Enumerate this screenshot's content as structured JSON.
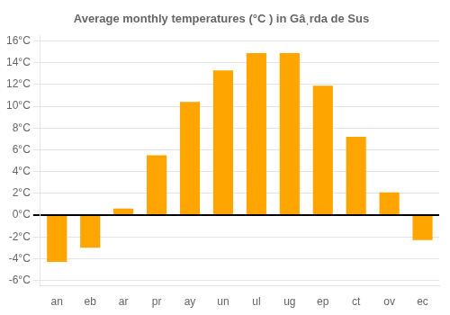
{
  "chart_data": {
    "type": "bar",
    "title": "Average monthly temperatures (°C ) in Gâˌrda de Sus",
    "categories": [
      "an",
      "eb",
      "ar",
      "pr",
      "ay",
      "un",
      "ul",
      "ug",
      "ep",
      "ct",
      "ov",
      "ec"
    ],
    "values": [
      -4.3,
      -3.0,
      0.6,
      5.5,
      10.4,
      13.3,
      14.9,
      14.9,
      11.9,
      7.2,
      2.1,
      -2.3
    ],
    "color": "#FFA500",
    "ylim": [
      -6.5,
      16.5
    ],
    "yticks": [
      {
        "value": -6,
        "label": "-6°C"
      },
      {
        "value": -4,
        "label": "-4°C"
      },
      {
        "value": -2,
        "label": "-2°C"
      },
      {
        "value": 0,
        "label": "0°C"
      },
      {
        "value": 2,
        "label": "2°C"
      },
      {
        "value": 4,
        "label": "4°C"
      },
      {
        "value": 6,
        "label": "6°C"
      },
      {
        "value": 8,
        "label": "8°C"
      },
      {
        "value": 10,
        "label": "10°C"
      },
      {
        "value": 12,
        "label": "12°C"
      },
      {
        "value": 14,
        "label": "14°C"
      },
      {
        "value": 16,
        "label": "16°C"
      }
    ],
    "grid": true
  }
}
